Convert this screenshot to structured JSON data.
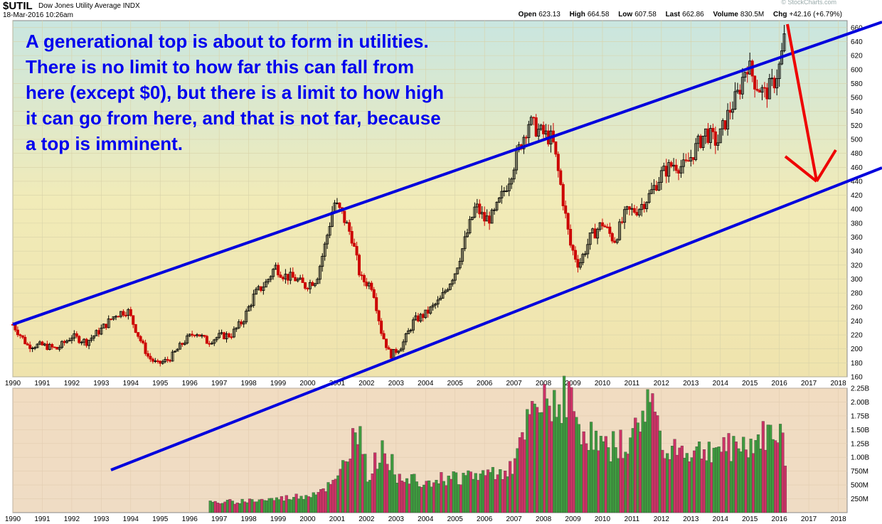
{
  "header": {
    "symbol": "$UTIL",
    "name": "Dow Jones Utility Average INDX",
    "date": "18-Mar-2016 10:26am",
    "open_label": "Open",
    "open": "623.13",
    "high_label": "High",
    "high": "664.58",
    "low_label": "Low",
    "low": "607.58",
    "last_label": "Last",
    "last": "662.86",
    "volume_label": "Volume",
    "volume": "830.5M",
    "chg_label": "Chg",
    "chg": "+42.16 (+6.79%)",
    "watermark": "© StockCharts.com"
  },
  "annotation": "A generational top is about to form in utilities. There is no limit to how far this can fall from here (except $0), but there is a limit to how high it can go from here, and that is not far, because a top is imminent.",
  "colors": {
    "up": "#000000",
    "down": "#cc0000",
    "channel": "#0000dd",
    "arrow": "#ee0000",
    "vol_up": "#3f9a3f",
    "vol_down": "#cc3366"
  },
  "chart_data": [
    {
      "type": "candlestick",
      "title": "",
      "x_range": [
        1990,
        2018.3
      ],
      "ylim": [
        160,
        670
      ],
      "x_ticks": [
        "1990",
        "1991",
        "1992",
        "1993",
        "1994",
        "1995",
        "1996",
        "1997",
        "1998",
        "1999",
        "2000",
        "2001",
        "2002",
        "2003",
        "2004",
        "2005",
        "2006",
        "2007",
        "2008",
        "2009",
        "2010",
        "2011",
        "2012",
        "2013",
        "2014",
        "2015",
        "2016",
        "2017",
        "2018"
      ],
      "y_ticks": [
        "160",
        "180",
        "200",
        "220",
        "240",
        "260",
        "280",
        "300",
        "320",
        "340",
        "360",
        "380",
        "400",
        "420",
        "440",
        "460",
        "480",
        "500",
        "520",
        "540",
        "560",
        "580",
        "600",
        "620",
        "640",
        "660"
      ],
      "price_path": [
        [
          1990,
          235
        ],
        [
          1990.5,
          205
        ],
        [
          1991,
          205
        ],
        [
          1991.5,
          200
        ],
        [
          1992,
          218
        ],
        [
          1992.5,
          210
        ],
        [
          1993,
          228
        ],
        [
          1993.5,
          250
        ],
        [
          1993.9,
          255
        ],
        [
          1994.3,
          215
        ],
        [
          1994.6,
          188
        ],
        [
          1994.9,
          178
        ],
        [
          1995.3,
          185
        ],
        [
          1995.8,
          210
        ],
        [
          1996.2,
          225
        ],
        [
          1996.6,
          210
        ],
        [
          1997,
          218
        ],
        [
          1997.4,
          220
        ],
        [
          1997.8,
          240
        ],
        [
          1998.2,
          278
        ],
        [
          1998.6,
          295
        ],
        [
          1998.9,
          318
        ],
        [
          1999.2,
          305
        ],
        [
          1999.6,
          300
        ],
        [
          1999.9,
          290
        ],
        [
          2000.3,
          300
        ],
        [
          2000.6,
          350
        ],
        [
          2000.9,
          410
        ],
        [
          2001.2,
          390
        ],
        [
          2001.5,
          360
        ],
        [
          2001.8,
          300
        ],
        [
          2002.2,
          290
        ],
        [
          2002.5,
          225
        ],
        [
          2002.8,
          190
        ],
        [
          2003.2,
          205
        ],
        [
          2003.6,
          240
        ],
        [
          2004,
          250
        ],
        [
          2004.5,
          270
        ],
        [
          2005,
          310
        ],
        [
          2005.3,
          350
        ],
        [
          2005.7,
          405
        ],
        [
          2006,
          385
        ],
        [
          2006.3,
          390
        ],
        [
          2006.8,
          440
        ],
        [
          2007.2,
          490
        ],
        [
          2007.5,
          525
        ],
        [
          2007.9,
          510
        ],
        [
          2008.3,
          500
        ],
        [
          2008.6,
          430
        ],
        [
          2008.9,
          350
        ],
        [
          2009.2,
          320
        ],
        [
          2009.6,
          360
        ],
        [
          2010,
          380
        ],
        [
          2010.4,
          355
        ],
        [
          2010.8,
          395
        ],
        [
          2011.2,
          400
        ],
        [
          2011.6,
          420
        ],
        [
          2012,
          450
        ],
        [
          2012.4,
          465
        ],
        [
          2012.8,
          460
        ],
        [
          2013.2,
          490
        ],
        [
          2013.5,
          510
        ],
        [
          2013.9,
          495
        ],
        [
          2014.3,
          540
        ],
        [
          2014.6,
          565
        ],
        [
          2014.9,
          610
        ],
        [
          2015.2,
          580
        ],
        [
          2015.5,
          565
        ],
        [
          2015.8,
          580
        ],
        [
          2016.05,
          610
        ],
        [
          2016.2,
          663
        ]
      ]
    },
    {
      "type": "bar",
      "title": "",
      "x_range": [
        1990,
        2018.3
      ],
      "ylim": [
        0,
        2250000000
      ],
      "y_ticks": [
        "250M",
        "500M",
        "750M",
        "1.00B",
        "1.25B",
        "1.50B",
        "1.75B",
        "2.00B",
        "2.25B"
      ],
      "x_ticks": [
        "1990",
        "1991",
        "1992",
        "1993",
        "1994",
        "1995",
        "1996",
        "1997",
        "1998",
        "1999",
        "2000",
        "2001",
        "2002",
        "2003",
        "2004",
        "2005",
        "2006",
        "2007",
        "2008",
        "2009",
        "2010",
        "2011",
        "2012",
        "2013",
        "2014",
        "2015",
        "2016",
        "2017",
        "2018"
      ],
      "volume_path": [
        [
          1996.7,
          180000000
        ],
        [
          1998,
          220000000
        ],
        [
          1999,
          250000000
        ],
        [
          2000,
          320000000
        ],
        [
          2001,
          550000000
        ],
        [
          2001.8,
          1750000000
        ],
        [
          2002,
          600000000
        ],
        [
          2002.6,
          1250000000
        ],
        [
          2003,
          700000000
        ],
        [
          2004,
          600000000
        ],
        [
          2005,
          650000000
        ],
        [
          2006,
          700000000
        ],
        [
          2007,
          850000000
        ],
        [
          2007.6,
          1800000000
        ],
        [
          2008.8,
          2200000000
        ],
        [
          2009.2,
          1600000000
        ],
        [
          2010,
          1200000000
        ],
        [
          2011,
          1300000000
        ],
        [
          2011.6,
          2200000000
        ],
        [
          2012,
          1300000000
        ],
        [
          2013,
          1100000000
        ],
        [
          2014,
          1200000000
        ],
        [
          2015,
          1250000000
        ],
        [
          2016.05,
          1550000000
        ],
        [
          2016.2,
          830000000
        ]
      ]
    }
  ]
}
